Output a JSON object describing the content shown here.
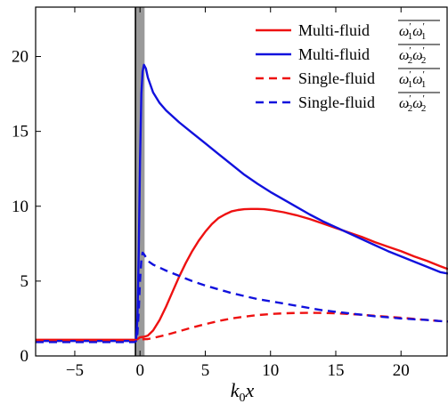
{
  "chart_data": {
    "type": "line",
    "title": "",
    "xlabel": {
      "base": "k",
      "sub": "0",
      "var": "x"
    },
    "ylabel": "",
    "xlim": [
      -8,
      23.6
    ],
    "ylim": [
      0,
      23.3
    ],
    "xticks": [
      -5,
      0,
      5,
      10,
      15,
      20
    ],
    "xtick_labels": [
      "−5",
      "0",
      "5",
      "10",
      "15",
      "20"
    ],
    "yticks": [
      0,
      5,
      10,
      15,
      20
    ],
    "ytick_labels": [
      "0",
      "5",
      "10",
      "15",
      "20"
    ],
    "shaded_band": [
      -0.35,
      0.35
    ],
    "vertical_line_x": -0.35,
    "legend_position": "top-right",
    "series": [
      {
        "label_text": "Multi-fluid",
        "label_math": {
          "base": "ω",
          "sub": "1"
        },
        "color": "#ee1111",
        "dash": "solid",
        "x": [
          -8,
          -2,
          -0.4,
          -0.2,
          0,
          0.3,
          0.6,
          1.0,
          1.5,
          2,
          2.5,
          3,
          3.5,
          4,
          4.5,
          5,
          5.5,
          6,
          6.5,
          7,
          7.5,
          8,
          8.5,
          9,
          9.5,
          10,
          11,
          12,
          13,
          14,
          15,
          16,
          17,
          18,
          19,
          20,
          21,
          22,
          23,
          23.6
        ],
        "y": [
          1.08,
          1.08,
          1.08,
          1.12,
          1.25,
          1.28,
          1.36,
          1.7,
          2.4,
          3.3,
          4.3,
          5.3,
          6.2,
          7.0,
          7.7,
          8.3,
          8.8,
          9.2,
          9.45,
          9.65,
          9.75,
          9.8,
          9.82,
          9.82,
          9.8,
          9.75,
          9.6,
          9.4,
          9.15,
          8.85,
          8.55,
          8.25,
          7.95,
          7.6,
          7.3,
          7.0,
          6.65,
          6.35,
          6.0,
          5.8
        ]
      },
      {
        "label_text": "Multi-fluid",
        "label_math": {
          "base": "ω",
          "sub": "2"
        },
        "color": "#1111dd",
        "dash": "solid",
        "x": [
          -8,
          -2,
          -0.4,
          -0.3,
          -0.2,
          -0.1,
          0,
          0.1,
          0.2,
          0.3,
          0.45,
          0.6,
          1.0,
          1.5,
          2,
          3,
          4,
          5,
          6,
          7,
          8,
          9,
          10,
          11,
          12,
          13,
          14,
          15,
          16,
          17,
          18,
          19,
          20,
          21,
          22,
          23,
          23.6
        ],
        "y": [
          1.0,
          1.0,
          1.0,
          1.1,
          2.5,
          7,
          13,
          17.5,
          19.0,
          19.45,
          19.2,
          18.6,
          17.6,
          16.9,
          16.4,
          15.6,
          14.9,
          14.2,
          13.5,
          12.8,
          12.1,
          11.5,
          10.95,
          10.45,
          9.95,
          9.45,
          9.0,
          8.6,
          8.2,
          7.8,
          7.4,
          7.0,
          6.65,
          6.3,
          5.95,
          5.6,
          5.5
        ]
      },
      {
        "label_text": "Single-fluid",
        "label_math": {
          "base": "ω",
          "sub": "1"
        },
        "color": "#ee1111",
        "dash": "dashed",
        "x": [
          -8,
          -2,
          -0.4,
          -0.2,
          0,
          0.3,
          0.6,
          1,
          2,
          3,
          4,
          5,
          6,
          7,
          8,
          9,
          10,
          11,
          12,
          13,
          14,
          15,
          16,
          17,
          18,
          19,
          20,
          21,
          22,
          23,
          23.6
        ],
        "y": [
          1.05,
          1.05,
          1.05,
          1.07,
          1.1,
          1.12,
          1.13,
          1.2,
          1.4,
          1.65,
          1.9,
          2.12,
          2.33,
          2.5,
          2.63,
          2.73,
          2.8,
          2.85,
          2.87,
          2.88,
          2.87,
          2.85,
          2.8,
          2.75,
          2.68,
          2.62,
          2.55,
          2.48,
          2.4,
          2.33,
          2.3
        ]
      },
      {
        "label_text": "Single-fluid",
        "label_math": {
          "base": "ω",
          "sub": "2"
        },
        "color": "#1111dd",
        "dash": "dashed",
        "x": [
          -8,
          -2,
          -0.4,
          -0.3,
          -0.2,
          -0.1,
          0,
          0.1,
          0.2,
          0.3,
          0.45,
          0.6,
          1,
          2,
          3,
          4,
          5,
          6,
          7,
          8,
          9,
          10,
          11,
          12,
          13,
          14,
          15,
          16,
          17,
          18,
          19,
          20,
          21,
          22,
          23,
          23.6
        ],
        "y": [
          0.93,
          0.93,
          0.93,
          1.0,
          1.5,
          3.0,
          5.0,
          6.4,
          6.9,
          6.8,
          6.6,
          6.35,
          6.1,
          5.7,
          5.35,
          5.0,
          4.7,
          4.45,
          4.2,
          4.0,
          3.8,
          3.65,
          3.5,
          3.35,
          3.2,
          3.05,
          2.95,
          2.85,
          2.75,
          2.65,
          2.58,
          2.5,
          2.45,
          2.4,
          2.33,
          2.3
        ]
      }
    ]
  }
}
